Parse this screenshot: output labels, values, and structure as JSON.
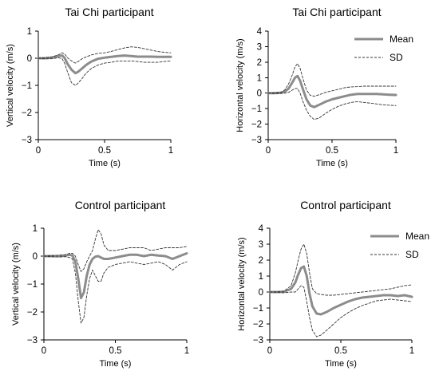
{
  "chart_data": [
    {
      "type": "line",
      "title": "Tai Chi participant",
      "xlabel": "Time (s)",
      "ylabel": "Vertical velocity (m/s)",
      "xlim": [
        0,
        1
      ],
      "ylim": [
        -3,
        1
      ],
      "xticks": [
        0,
        0.5,
        1
      ],
      "xtick_labels": [
        "0",
        "0.5",
        "1"
      ],
      "yticks": [
        1,
        0,
        -1,
        -2,
        -3
      ],
      "ytick_labels": [
        "1",
        "0",
        "−1",
        "−2",
        "−3"
      ],
      "legend": null,
      "x": [
        0,
        0.05,
        0.1,
        0.15,
        0.18,
        0.2,
        0.22,
        0.25,
        0.28,
        0.3,
        0.33,
        0.36,
        0.4,
        0.45,
        0.5,
        0.55,
        0.6,
        0.65,
        0.7,
        0.75,
        0.8,
        0.85,
        0.9,
        0.95,
        1.0
      ],
      "series": [
        {
          "name": "Mean",
          "style": "solid",
          "values": [
            0,
            0,
            0.02,
            0.08,
            0.1,
            0.0,
            -0.2,
            -0.42,
            -0.55,
            -0.5,
            -0.38,
            -0.25,
            -0.12,
            -0.02,
            0.02,
            0.05,
            0.08,
            0.1,
            0.08,
            0.06,
            0.06,
            0.06,
            0.05,
            0.05,
            0.05
          ]
        },
        {
          "name": "SD upper",
          "style": "dashed",
          "values": [
            0,
            0.02,
            0.05,
            0.12,
            0.2,
            0.15,
            0.02,
            -0.1,
            -0.18,
            -0.12,
            -0.02,
            0.05,
            0.12,
            0.18,
            0.2,
            0.25,
            0.32,
            0.38,
            0.42,
            0.4,
            0.35,
            0.3,
            0.25,
            0.22,
            0.2
          ]
        },
        {
          "name": "SD lower",
          "style": "dashed",
          "values": [
            0,
            -0.02,
            -0.02,
            0.02,
            -0.02,
            -0.2,
            -0.5,
            -0.9,
            -1.0,
            -0.92,
            -0.75,
            -0.55,
            -0.38,
            -0.25,
            -0.18,
            -0.15,
            -0.1,
            -0.1,
            -0.1,
            -0.12,
            -0.15,
            -0.15,
            -0.15,
            -0.12,
            -0.1
          ]
        }
      ]
    },
    {
      "type": "line",
      "title": "Tai Chi participant",
      "xlabel": "Time (s)",
      "ylabel": "Horizontal velocity (m/s)",
      "xlim": [
        0,
        1
      ],
      "ylim": [
        -3,
        4
      ],
      "xticks": [
        0,
        0.5,
        1
      ],
      "xtick_labels": [
        "0",
        "0.5",
        "1"
      ],
      "yticks": [
        4,
        3,
        2,
        1,
        0,
        -1,
        -2,
        -3
      ],
      "ytick_labels": [
        "4",
        "3",
        "2",
        "1",
        "0",
        "−1",
        "−2",
        "−3"
      ],
      "legend": {
        "entries": [
          {
            "label": "Mean",
            "style": "solid"
          },
          {
            "label": "SD",
            "style": "dashed"
          }
        ],
        "position": "top-right"
      },
      "x": [
        0,
        0.05,
        0.1,
        0.13,
        0.16,
        0.19,
        0.21,
        0.23,
        0.25,
        0.27,
        0.3,
        0.33,
        0.36,
        0.4,
        0.45,
        0.5,
        0.55,
        0.6,
        0.65,
        0.7,
        0.75,
        0.8,
        0.85,
        0.9,
        0.95,
        1.0
      ],
      "series": [
        {
          "name": "Mean",
          "style": "solid",
          "values": [
            0,
            0,
            0.02,
            0.1,
            0.3,
            0.7,
            1.0,
            1.1,
            0.8,
            0.3,
            -0.4,
            -0.8,
            -0.9,
            -0.75,
            -0.55,
            -0.4,
            -0.3,
            -0.2,
            -0.1,
            -0.05,
            -0.05,
            -0.05,
            -0.05,
            -0.08,
            -0.1,
            -0.12
          ]
        },
        {
          "name": "SD upper",
          "style": "dashed",
          "values": [
            0,
            0.02,
            0.05,
            0.2,
            0.6,
            1.2,
            1.7,
            1.9,
            1.6,
            1.0,
            0.2,
            -0.15,
            -0.2,
            -0.1,
            0.05,
            0.15,
            0.25,
            0.35,
            0.4,
            0.42,
            0.45,
            0.45,
            0.45,
            0.45,
            0.45,
            0.45
          ]
        },
        {
          "name": "SD lower",
          "style": "dashed",
          "values": [
            0,
            -0.02,
            -0.02,
            0.0,
            0.05,
            0.2,
            0.3,
            0.3,
            0.0,
            -0.5,
            -1.1,
            -1.5,
            -1.7,
            -1.6,
            -1.3,
            -1.05,
            -0.85,
            -0.7,
            -0.6,
            -0.55,
            -0.6,
            -0.65,
            -0.7,
            -0.75,
            -0.78,
            -0.8
          ]
        }
      ]
    },
    {
      "type": "line",
      "title": "Control participant",
      "xlabel": "Time (s)",
      "ylabel": "Vertical velocity (m/s)",
      "xlim": [
        0,
        1
      ],
      "ylim": [
        -3,
        1
      ],
      "xticks": [
        0,
        0.5,
        1
      ],
      "xtick_labels": [
        "0",
        "0.5",
        "1"
      ],
      "yticks": [
        1,
        0,
        -1,
        -2,
        -3
      ],
      "ytick_labels": [
        "1",
        "0",
        "−1",
        "−2",
        "−3"
      ],
      "legend": null,
      "x": [
        0,
        0.05,
        0.1,
        0.15,
        0.18,
        0.2,
        0.22,
        0.24,
        0.26,
        0.28,
        0.3,
        0.32,
        0.34,
        0.36,
        0.38,
        0.4,
        0.42,
        0.45,
        0.5,
        0.55,
        0.6,
        0.65,
        0.7,
        0.75,
        0.8,
        0.85,
        0.9,
        0.95,
        1.0
      ],
      "series": [
        {
          "name": "Mean",
          "style": "solid",
          "values": [
            0,
            0,
            0,
            0.02,
            0.05,
            0.02,
            -0.2,
            -0.8,
            -1.5,
            -1.3,
            -0.7,
            -0.3,
            -0.1,
            -0.02,
            0.0,
            -0.05,
            -0.1,
            -0.1,
            -0.05,
            0.0,
            0.05,
            0.05,
            0.0,
            0.05,
            0.02,
            0.0,
            -0.1,
            0.0,
            0.1
          ]
        },
        {
          "name": "SD upper",
          "style": "dashed",
          "values": [
            0,
            0.02,
            0.03,
            0.05,
            0.1,
            0.1,
            0.0,
            -0.3,
            -0.55,
            -0.45,
            -0.2,
            0.0,
            0.2,
            0.6,
            0.95,
            0.8,
            0.4,
            0.2,
            0.2,
            0.25,
            0.3,
            0.3,
            0.3,
            0.2,
            0.25,
            0.3,
            0.3,
            0.3,
            0.35
          ]
        },
        {
          "name": "SD lower",
          "style": "dashed",
          "values": [
            0,
            -0.02,
            -0.03,
            -0.02,
            -0.05,
            -0.1,
            -0.6,
            -1.6,
            -2.4,
            -2.2,
            -1.4,
            -0.8,
            -0.5,
            -0.7,
            -0.9,
            -0.9,
            -0.6,
            -0.4,
            -0.3,
            -0.25,
            -0.2,
            -0.25,
            -0.3,
            -0.25,
            -0.2,
            -0.3,
            -0.5,
            -0.3,
            -0.2
          ]
        }
      ]
    },
    {
      "type": "line",
      "title": "Control participant",
      "xlabel": "Time (s)",
      "ylabel": "Horizontal velocity (m/s)",
      "xlim": [
        0,
        1
      ],
      "ylim": [
        -3,
        4
      ],
      "xticks": [
        0,
        0.5,
        1
      ],
      "xtick_labels": [
        "0",
        "0.5",
        "1"
      ],
      "yticks": [
        4,
        3,
        2,
        1,
        0,
        -1,
        -2,
        -3
      ],
      "ytick_labels": [
        "4",
        "3",
        "2",
        "1",
        "0",
        "−1",
        "−2",
        "−3"
      ],
      "legend": {
        "entries": [
          {
            "label": "Mean",
            "style": "solid"
          },
          {
            "label": "SD",
            "style": "dashed"
          }
        ],
        "position": "top-right"
      },
      "x": [
        0,
        0.05,
        0.1,
        0.15,
        0.18,
        0.2,
        0.22,
        0.24,
        0.26,
        0.28,
        0.3,
        0.33,
        0.36,
        0.4,
        0.45,
        0.5,
        0.55,
        0.6,
        0.65,
        0.7,
        0.75,
        0.8,
        0.85,
        0.9,
        0.95,
        1.0
      ],
      "series": [
        {
          "name": "Mean",
          "style": "solid",
          "values": [
            0,
            0,
            0.02,
            0.2,
            0.6,
            1.1,
            1.5,
            1.6,
            1.0,
            -0.1,
            -0.9,
            -1.35,
            -1.4,
            -1.25,
            -1.0,
            -0.8,
            -0.6,
            -0.45,
            -0.35,
            -0.3,
            -0.25,
            -0.2,
            -0.2,
            -0.25,
            -0.2,
            -0.3
          ]
        },
        {
          "name": "SD upper",
          "style": "dashed",
          "values": [
            0,
            0.02,
            0.05,
            0.4,
            1.2,
            2.0,
            2.7,
            3.0,
            2.4,
            1.2,
            0.2,
            -0.1,
            -0.15,
            -0.2,
            -0.2,
            -0.15,
            -0.1,
            -0.05,
            0.0,
            0.05,
            0.1,
            0.15,
            0.2,
            0.3,
            0.4,
            0.45
          ]
        },
        {
          "name": "SD lower",
          "style": "dashed",
          "values": [
            0,
            -0.02,
            -0.05,
            0.0,
            0.0,
            0.2,
            0.4,
            0.3,
            -0.6,
            -1.6,
            -2.4,
            -2.8,
            -2.7,
            -2.4,
            -2.0,
            -1.6,
            -1.3,
            -1.05,
            -0.85,
            -0.7,
            -0.55,
            -0.5,
            -0.45,
            -0.5,
            -0.55,
            -0.6
          ]
        }
      ]
    }
  ]
}
